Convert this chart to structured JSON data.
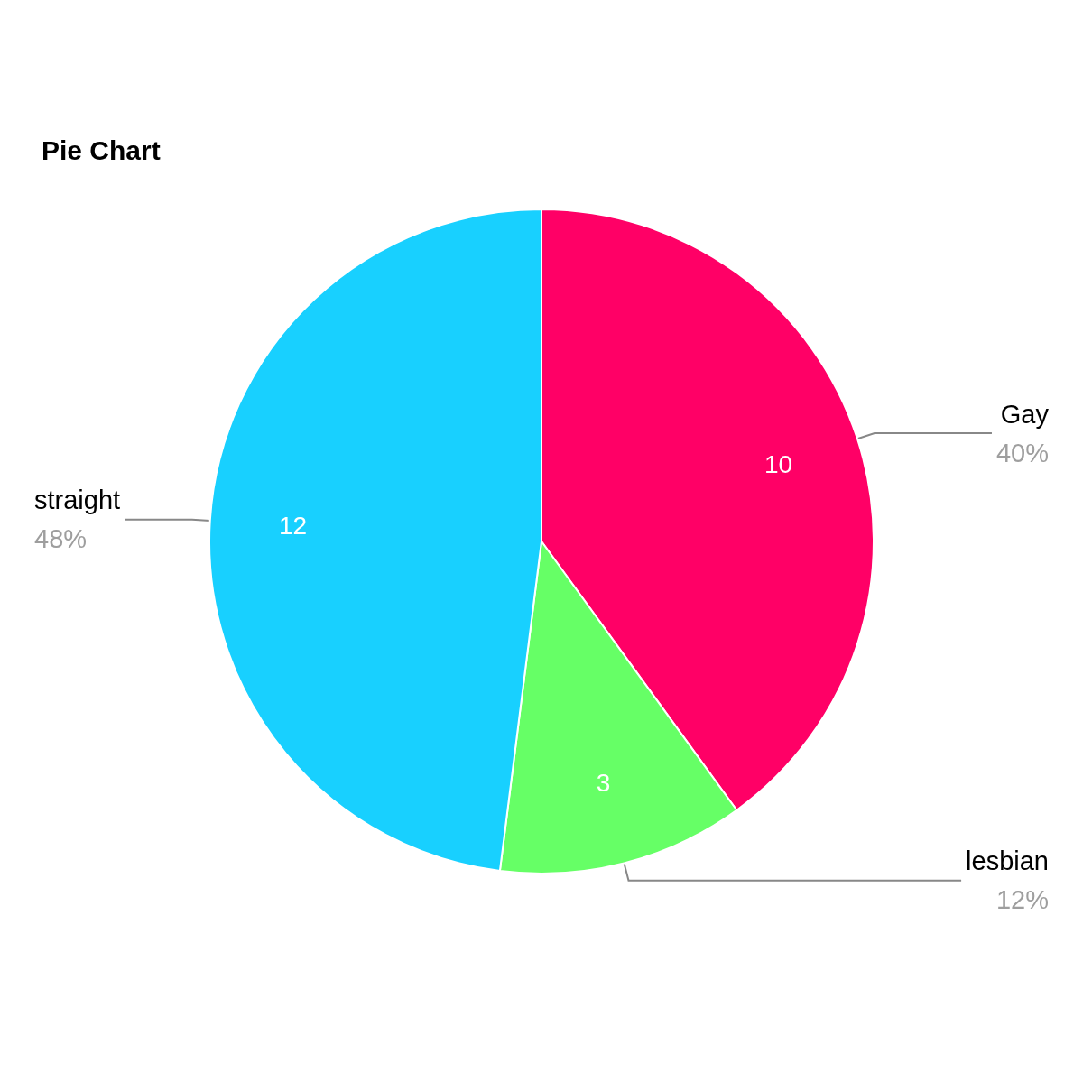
{
  "chart_data": {
    "type": "pie",
    "title": "Pie Chart",
    "categories": [
      "Gay",
      "lesbian",
      "straight"
    ],
    "values": [
      40,
      12,
      48
    ],
    "colors": [
      "#ff0066",
      "#66ff66",
      "#18d0ff"
    ],
    "value_labels": [
      "40%",
      "12%",
      "48%"
    ],
    "annotations": [
      {
        "text": "10",
        "x": "Gay"
      },
      {
        "text": "3",
        "x": "lesbian"
      },
      {
        "text": "12",
        "x": "straight"
      }
    ],
    "legend": false
  }
}
